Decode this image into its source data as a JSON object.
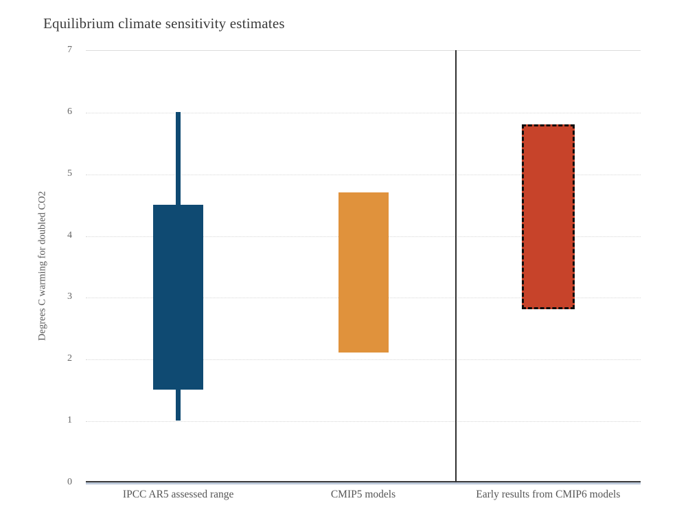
{
  "title": "Equilibrium climate sensitivity estimates",
  "chart_data": {
    "type": "bar",
    "subtype": "floating-range-boxes-with-whisker",
    "title": "Equilibrium climate sensitivity estimates",
    "ylabel": "Degrees C warming for doubled CO2",
    "xlabel": "",
    "ylim": [
      0,
      7
    ],
    "yticks": [
      0,
      1,
      2,
      3,
      4,
      5,
      6,
      7
    ],
    "grid": "horizontal-dotted",
    "legend": "none",
    "categories": [
      "IPCC AR5 assessed range",
      "CMIP5 models",
      "Early results from CMIP6 models"
    ],
    "series": [
      {
        "name": "IPCC AR5 assessed range",
        "box_low": 1.5,
        "box_high": 4.5,
        "whisker_low": 1.0,
        "whisker_high": 6.0,
        "fill": "#0f4a72",
        "border": "none"
      },
      {
        "name": "CMIP5 models",
        "box_low": 2.1,
        "box_high": 4.7,
        "fill": "#e0923c",
        "border": "none"
      },
      {
        "name": "Early results from CMIP6 models",
        "box_low": 2.8,
        "box_high": 5.8,
        "fill": "#c7432a",
        "border": "dashed-black"
      }
    ],
    "divider_between_categories": [
      "CMIP5 models",
      "Early results from CMIP6 models"
    ]
  },
  "colors": {
    "background": "#ffffff",
    "title_text": "#3a3a3a",
    "axis_label_text": "#5a5a5a",
    "tick_text": "#666666",
    "gridline": "#d6d6d6",
    "plot_top_border": "#dcdcdc",
    "axis_dark": "#3b3b3b",
    "axis_light_blue": "#bcc8da",
    "divider": "#2f2f2f",
    "bar_blue": "#0f4a72",
    "bar_orange": "#e0923c",
    "bar_red": "#c7432a",
    "dashed_border": "#0d0d0d"
  }
}
